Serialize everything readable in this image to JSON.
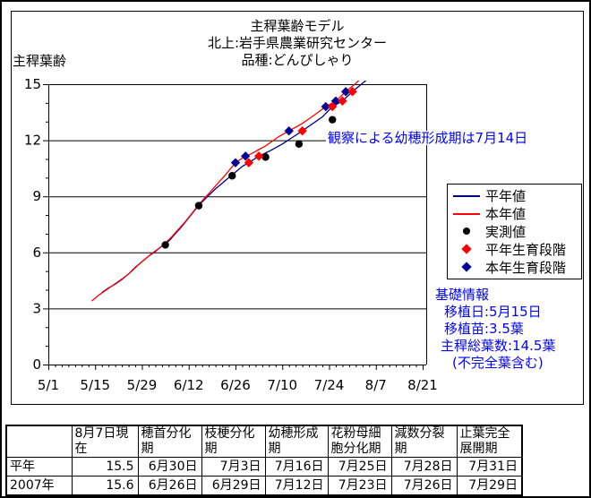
{
  "chart_data": {
    "type": "line",
    "title": "主稈葉齢モデル 北上:岩手県農業研究センター 品種:どんぴしゃり",
    "title_lines": [
      "主稈葉齢モデル",
      "北上:岩手県農業研究センター",
      "品種:どんぴしゃり"
    ],
    "xlabel": "",
    "ylabel": "主稈葉齢",
    "x_unit": "days since 5/1",
    "x_tick_labels": [
      "5/1",
      "5/15",
      "5/29",
      "6/12",
      "6/26",
      "7/10",
      "7/24",
      "8/7",
      "8/21"
    ],
    "x_tick_days": [
      0,
      14,
      28,
      42,
      56,
      70,
      84,
      98,
      112
    ],
    "x_minor_tick_step_days": 2,
    "xlim_days": [
      0,
      112
    ],
    "y_ticks": [
      0,
      3,
      6,
      9,
      12,
      15
    ],
    "y_minor_tick_step": 1,
    "ylim": [
      0,
      15
    ],
    "grid": "horizontal",
    "legend_position": "right",
    "annotation": "観察による幼穂形成期は7月14日",
    "series": [
      {
        "name": "平年値",
        "type": "line",
        "color": "#000080",
        "points": [
          [
            16,
            3.85
          ],
          [
            18,
            4.1
          ],
          [
            20,
            4.3
          ],
          [
            22,
            4.55
          ],
          [
            24,
            4.85
          ],
          [
            26,
            5.2
          ],
          [
            28,
            5.5
          ],
          [
            30,
            5.8
          ],
          [
            32,
            6.05
          ],
          [
            34,
            6.35
          ],
          [
            36,
            6.6
          ],
          [
            38,
            7.0
          ],
          [
            40,
            7.4
          ],
          [
            42,
            7.85
          ],
          [
            44,
            8.3
          ],
          [
            46,
            8.7
          ],
          [
            48,
            9.05
          ],
          [
            50,
            9.4
          ],
          [
            52,
            9.7
          ],
          [
            54,
            10.0
          ],
          [
            56,
            10.3
          ],
          [
            58,
            10.6
          ],
          [
            60,
            10.8
          ],
          [
            63,
            11.15
          ],
          [
            66,
            11.4
          ],
          [
            68,
            11.6
          ],
          [
            70,
            11.8
          ],
          [
            73,
            12.15
          ],
          [
            76,
            12.5
          ],
          [
            78,
            12.75
          ],
          [
            80,
            13.0
          ],
          [
            82,
            13.25
          ],
          [
            85,
            13.8
          ],
          [
            88,
            14.1
          ],
          [
            91,
            14.6
          ],
          [
            94,
            15.05
          ],
          [
            97,
            15.5
          ]
        ]
      },
      {
        "name": "本年値",
        "type": "line",
        "color": "#ff0000",
        "points": [
          [
            13,
            3.4
          ],
          [
            15,
            3.7
          ],
          [
            17,
            3.95
          ],
          [
            19,
            4.2
          ],
          [
            21,
            4.45
          ],
          [
            23,
            4.7
          ],
          [
            25,
            5.0
          ],
          [
            27,
            5.35
          ],
          [
            29,
            5.65
          ],
          [
            31,
            5.95
          ],
          [
            33,
            6.2
          ],
          [
            35,
            6.5
          ],
          [
            37,
            6.85
          ],
          [
            39,
            7.25
          ],
          [
            41,
            7.65
          ],
          [
            43,
            8.1
          ],
          [
            45,
            8.55
          ],
          [
            47,
            8.95
          ],
          [
            49,
            9.35
          ],
          [
            51,
            9.75
          ],
          [
            53,
            10.15
          ],
          [
            56,
            10.8
          ],
          [
            59,
            11.15
          ],
          [
            61,
            11.3
          ],
          [
            63,
            11.5
          ],
          [
            65,
            11.7
          ],
          [
            67,
            11.95
          ],
          [
            69,
            12.2
          ],
          [
            72,
            12.5
          ],
          [
            74,
            12.7
          ],
          [
            76,
            12.9
          ],
          [
            78,
            13.15
          ],
          [
            80,
            13.4
          ],
          [
            83,
            13.8
          ],
          [
            86,
            14.1
          ],
          [
            89,
            14.6
          ],
          [
            92,
            15.05
          ],
          [
            95,
            15.55
          ]
        ]
      },
      {
        "name": "実測値",
        "type": "scatter",
        "marker": "circle",
        "color": "#000000",
        "points": [
          {
            "date": "6/5",
            "day": 35,
            "leaf_age": 6.4
          },
          {
            "date": "6/15",
            "day": 45,
            "leaf_age": 8.5
          },
          {
            "date": "6/25",
            "day": 55,
            "leaf_age": 10.1
          },
          {
            "date": "7/5",
            "day": 65,
            "leaf_age": 11.1
          },
          {
            "date": "7/15",
            "day": 75,
            "leaf_age": 11.8
          },
          {
            "date": "7/25",
            "day": 85,
            "leaf_age": 13.1
          }
        ]
      },
      {
        "name": "平年生育段階",
        "type": "scatter",
        "marker": "diamond",
        "color": "#ff0000",
        "points": [
          {
            "stage": "穂首分化期",
            "date": "6/30",
            "day": 60,
            "leaf_age": 10.8
          },
          {
            "stage": "枝梗分化期",
            "date": "7/3",
            "day": 63,
            "leaf_age": 11.15
          },
          {
            "stage": "幼穂形成期",
            "date": "7/16",
            "day": 76,
            "leaf_age": 12.5
          },
          {
            "stage": "花粉母細胞分化期",
            "date": "7/25",
            "day": 85,
            "leaf_age": 13.8
          },
          {
            "stage": "減数分裂期",
            "date": "7/28",
            "day": 88,
            "leaf_age": 14.1
          },
          {
            "stage": "止葉完全展開期",
            "date": "7/31",
            "day": 91,
            "leaf_age": 14.6
          }
        ]
      },
      {
        "name": "本年生育段階",
        "type": "scatter",
        "marker": "diamond",
        "color": "#000099",
        "points": [
          {
            "stage": "穂首分化期",
            "date": "6/26",
            "day": 56,
            "leaf_age": 10.8
          },
          {
            "stage": "枝梗分化期",
            "date": "6/29",
            "day": 59,
            "leaf_age": 11.15
          },
          {
            "stage": "幼穂形成期",
            "date": "7/12",
            "day": 72,
            "leaf_age": 12.5
          },
          {
            "stage": "花粉母細胞分化期",
            "date": "7/23",
            "day": 83,
            "leaf_age": 13.8
          },
          {
            "stage": "減数分裂期",
            "date": "7/26",
            "day": 86,
            "leaf_age": 14.1
          },
          {
            "stage": "止葉完全展開期",
            "date": "7/29",
            "day": 89,
            "leaf_age": 14.6
          }
        ]
      }
    ]
  },
  "legend": [
    {
      "label": "平年値",
      "marker": "line",
      "color": "#000080"
    },
    {
      "label": "本年値",
      "marker": "line",
      "color": "#ff0000"
    },
    {
      "label": "実測値",
      "marker": "circle",
      "color": "#000000"
    },
    {
      "label": "平年生育段階",
      "marker": "diamond",
      "color": "#ff0000"
    },
    {
      "label": "本年生育段階",
      "marker": "diamond",
      "color": "#000099"
    }
  ],
  "info_box": {
    "heading": "基礎情報",
    "lines": [
      "移植日:5月15日",
      "移植苗:3.5葉",
      "主稈総葉数:14.5葉",
      "(不完全葉含む)"
    ],
    "text_color": "#0000ff"
  },
  "table": {
    "columns": [
      "",
      "8月7日現在",
      "穂首分化期",
      "枝梗分化期",
      "幼穂形成期",
      "花粉母細胞分化期",
      "減数分裂期",
      "止葉完全展開期"
    ],
    "rows": [
      {
        "label": "平年",
        "values": [
          "15.5",
          "6月30日",
          "7月3日",
          "7月16日",
          "7月25日",
          "7月28日",
          "7月31日"
        ]
      },
      {
        "label": "2007年",
        "values": [
          "15.6",
          "6月26日",
          "6月29日",
          "7月12日",
          "7月23日",
          "7月26日",
          "7月29日"
        ]
      }
    ]
  },
  "colors": {
    "heinen_line": "#000080",
    "honnen_line": "#ff0000",
    "measured": "#000000",
    "heinen_stage": "#ff0000",
    "honnen_stage": "#000099",
    "blue_text": "#0000ff"
  }
}
